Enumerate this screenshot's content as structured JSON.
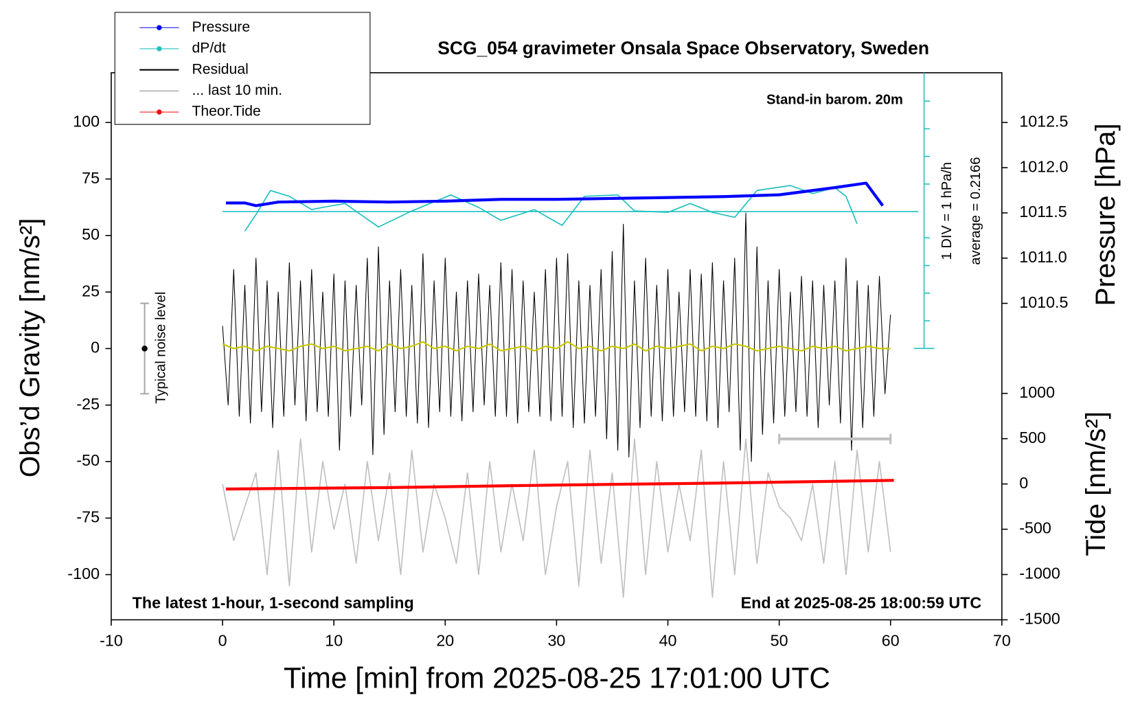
{
  "chart_data": {
    "type": "line",
    "title": "SCG_054 gravimeter Onsala Space Observatory, Sweden",
    "xlabel": "Time [min] from 2025-08-25 17:01:00 UTC",
    "ylabel": "Obs’d Gravity [nm/s²]",
    "y2label": "Pressure [hPa]",
    "y3label": "Tide [nm/s²]",
    "annotations": {
      "barometer": "Stand-in barom. 20m",
      "div": "1 DIV = 1 hPa/h",
      "average": "average = 0.2166",
      "noise": "Typical noise level",
      "sampling": "The latest 1-hour, 1-second sampling",
      "end": "End at 2025-08-25 18:00:59 UTC"
    },
    "xlim": [
      -10,
      70
    ],
    "xticks": [
      -10,
      0,
      10,
      20,
      30,
      40,
      50,
      60,
      70
    ],
    "ylim": [
      -120,
      122
    ],
    "yticks": [
      -100,
      -75,
      -50,
      -25,
      0,
      25,
      50,
      75,
      100
    ],
    "y2lim": [
      1007.0,
      1013.05
    ],
    "y2ticks": [
      1010.5,
      {
        "value": 1011,
        "label": "1011.0"
      },
      1011.5,
      {
        "value": 1012,
        "label": "1012.0"
      },
      1012.5
    ],
    "y3lim": [
      -1500,
      4540
    ],
    "y3ticks": [
      -1500,
      -1000,
      -500,
      0,
      500,
      1000
    ],
    "y4lim": [
      -14.55,
      5.24
    ],
    "dpdt_average": 0.2166,
    "legend": "upper left",
    "series": [
      {
        "name": "Pressure",
        "color": "#0000ff",
        "axis": "y2",
        "width": 4,
        "marker": true,
        "x": [
          0.3,
          2,
          3,
          5,
          10,
          15,
          20,
          25,
          30,
          35,
          40,
          45,
          50,
          55,
          57.8,
          59.3
        ],
        "values": [
          1011.61,
          1011.61,
          1011.58,
          1011.62,
          1011.63,
          1011.62,
          1011.63,
          1011.65,
          1011.65,
          1011.66,
          1011.67,
          1011.68,
          1011.7,
          1011.78,
          1011.83,
          1011.58
        ]
      },
      {
        "name": "dP/dt",
        "color": "#20c0c0",
        "axis": "y4",
        "width": 1.6,
        "marker": true,
        "x": [
          2,
          3,
          4.3,
          6,
          8,
          9,
          11,
          14,
          17,
          20.5,
          23,
          25,
          28,
          30.5,
          32.5,
          35.5,
          37,
          40,
          42,
          44,
          46,
          48,
          51,
          53,
          55,
          56,
          57
        ],
        "values": [
          -0.49,
          0.11,
          0.98,
          0.77,
          0.29,
          0.37,
          0.51,
          -0.34,
          0.24,
          0.82,
          0.37,
          -0.1,
          0.29,
          -0.28,
          0.77,
          0.82,
          0.24,
          0.19,
          0.51,
          0.19,
          0.01,
          0.98,
          1.16,
          0.87,
          1.08,
          0.77,
          -0.23
        ]
      },
      {
        "name": "Residual",
        "color": "#000000",
        "axis": "y",
        "width": 1,
        "marker": false,
        "x": [
          0,
          0.5,
          1,
          1.5,
          2,
          2.5,
          3,
          3.5,
          4,
          4.5,
          5,
          5.5,
          6,
          6.5,
          7,
          7.5,
          8,
          8.5,
          9,
          9.5,
          10,
          10.5,
          11,
          11.5,
          12,
          12.5,
          13,
          13.5,
          14,
          14.5,
          15,
          15.5,
          16,
          16.5,
          17,
          17.5,
          18,
          18.5,
          19,
          19.5,
          20,
          20.5,
          21,
          21.5,
          22,
          22.5,
          23,
          23.5,
          24,
          24.5,
          25,
          25.5,
          26,
          26.5,
          27,
          27.5,
          28,
          28.5,
          29,
          29.5,
          30,
          30.5,
          31,
          31.5,
          32,
          32.5,
          33,
          33.5,
          34,
          34.5,
          35,
          35.5,
          36,
          36.5,
          37,
          37.5,
          38,
          38.5,
          39,
          39.5,
          40,
          40.5,
          41,
          41.5,
          42,
          42.5,
          43,
          43.5,
          44,
          44.5,
          45,
          45.5,
          46,
          46.5,
          47,
          47.5,
          48,
          48.5,
          49,
          49.5,
          50,
          50.5,
          51,
          51.5,
          52,
          52.5,
          53,
          53.5,
          54,
          54.5,
          55,
          55.5,
          56,
          56.5,
          57,
          57.5,
          58,
          58.5,
          59,
          59.5,
          60
        ],
        "values": [
          10,
          -25,
          35,
          -30,
          28,
          -33,
          40,
          -28,
          30,
          -35,
          25,
          -30,
          38,
          -25,
          30,
          -32,
          35,
          -28,
          25,
          -30,
          33,
          -45,
          30,
          -30,
          28,
          -25,
          40,
          -47,
          45,
          -38,
          30,
          -28,
          35,
          -30,
          28,
          -33,
          42,
          -35,
          30,
          -28,
          40,
          -30,
          25,
          -32,
          30,
          -28,
          33,
          -25,
          28,
          -30,
          38,
          -30,
          35,
          -33,
          30,
          -28,
          25,
          -30,
          35,
          -32,
          40,
          -30,
          42,
          -35,
          30,
          -33,
          28,
          -30,
          35,
          -40,
          43,
          -45,
          55,
          -48,
          30,
          -35,
          40,
          -30,
          28,
          -32,
          35,
          -30,
          25,
          -28,
          35,
          -30,
          33,
          -32,
          38,
          -35,
          30,
          -28,
          40,
          -45,
          60,
          -50,
          45,
          -38,
          30,
          -33,
          35,
          -30,
          25,
          -28,
          32,
          -30,
          30,
          -35,
          28,
          -25,
          30,
          -33,
          40,
          -45,
          30,
          -35,
          28,
          -30,
          32,
          -20,
          15
        ]
      },
      {
        "name": "... last 10 min.",
        "color": "#c0c0c0",
        "axis": "y",
        "width": 1.6,
        "marker": false,
        "x": [
          0,
          1,
          2,
          3,
          4,
          5,
          6,
          7,
          8,
          9,
          10,
          11,
          12,
          13,
          14,
          15,
          16,
          17,
          18,
          19,
          20,
          21,
          22,
          23,
          24,
          25,
          26,
          27,
          28,
          29,
          30,
          31,
          32,
          33,
          34,
          35,
          36,
          37,
          38,
          39,
          40,
          41,
          42,
          43,
          44,
          45,
          46,
          47,
          48,
          49,
          50,
          51,
          52,
          53,
          54,
          55,
          56,
          57,
          58,
          59,
          60
        ],
        "values": [
          -60,
          -85,
          -70,
          -55,
          -100,
          -45,
          -105,
          -40,
          -90,
          -50,
          -80,
          -60,
          -95,
          -50,
          -85,
          -55,
          -100,
          -45,
          -90,
          -60,
          -75,
          -95,
          -55,
          -100,
          -50,
          -90,
          -60,
          -85,
          -45,
          -100,
          -70,
          -50,
          -105,
          -45,
          -95,
          -55,
          -110,
          -40,
          -100,
          -50,
          -90,
          -60,
          -85,
          -45,
          -110,
          -50,
          -100,
          -40,
          -95,
          -55,
          -70,
          -75,
          -85,
          -60,
          -95,
          -50,
          -100,
          -45,
          -90,
          -50,
          -90
        ]
      },
      {
        "name": "Theor.Tide",
        "color": "#ff0000",
        "axis": "y3",
        "width": 4,
        "marker": true,
        "x": [
          0.3,
          15,
          30,
          45,
          60.3
        ],
        "values": [
          -56,
          -40,
          -12,
          10,
          40
        ]
      }
    ],
    "smoothed_residual": {
      "color": "#c8c800",
      "x": [
        0,
        1,
        2,
        3,
        4,
        5,
        6,
        7,
        8,
        9,
        10,
        11,
        12,
        13,
        14,
        15,
        16,
        17,
        18,
        19,
        20,
        21,
        22,
        23,
        24,
        25,
        26,
        27,
        28,
        29,
        30,
        31,
        32,
        33,
        34,
        35,
        36,
        37,
        38,
        39,
        40,
        41,
        42,
        43,
        44,
        45,
        46,
        47,
        48,
        49,
        50,
        51,
        52,
        53,
        54,
        55,
        56,
        57,
        58,
        59,
        60
      ],
      "values": [
        2,
        0,
        1,
        -1,
        1,
        0,
        -1,
        1,
        2,
        0,
        1,
        -1,
        0,
        1,
        -1,
        2,
        0,
        1,
        3,
        0,
        1,
        -1,
        1,
        0,
        2,
        -1,
        0,
        1,
        -1,
        1,
        0,
        3,
        0,
        1,
        -1,
        1,
        0,
        2,
        -1,
        1,
        0,
        1,
        2,
        -1,
        1,
        0,
        2,
        1,
        -1,
        0,
        1,
        0,
        -1,
        1,
        0,
        1,
        -1,
        0,
        1,
        0,
        0
      ]
    },
    "span": {
      "x": [
        50,
        60
      ],
      "y": -40,
      "color": "#c0c0c0"
    },
    "noise_level": {
      "x": -7,
      "value": 0,
      "error": 20
    }
  }
}
